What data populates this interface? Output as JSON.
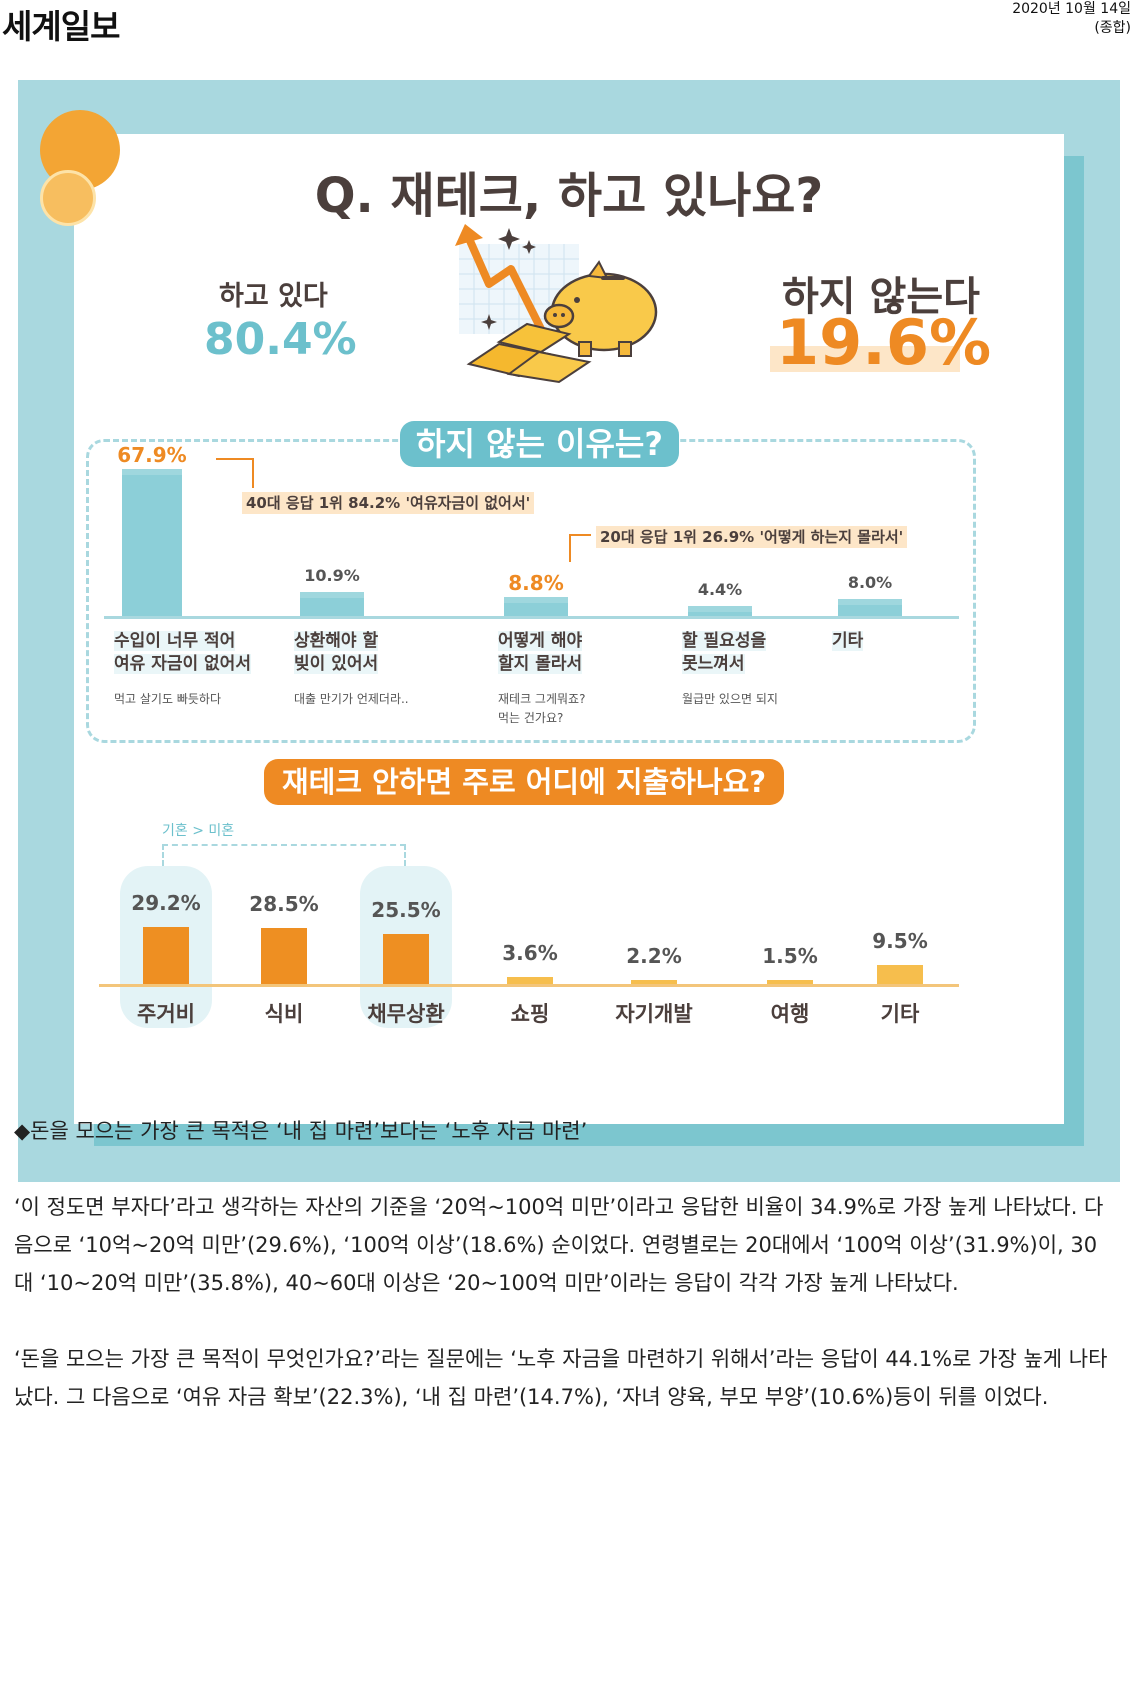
{
  "masthead": {
    "logo": "세계일보",
    "date": "2020년 10월 14일",
    "section": "(종합)"
  },
  "infographic": {
    "question": "Q. 재테크, 하고 있나요?",
    "yes": {
      "label": "하고 있다",
      "pct": "80.4%"
    },
    "no": {
      "label": "하지 않는다",
      "pct": "19.6%"
    },
    "reasons": {
      "title": "하지 않는 이유는?",
      "callout_40s": "40대 응답 1위 84.2% '여유자금이 없어서'",
      "callout_20s": "20대 응답 1위 26.9% '어떻게 하는지 몰라서'",
      "items": [
        {
          "value": 67.9,
          "value_label": "67.9%",
          "line1": "수입이 너무 적어",
          "line2": "여유 자금이 없어서",
          "sub1": "먹고 살기도 빠듯하다",
          "sub2": ""
        },
        {
          "value": 10.9,
          "value_label": "10.9%",
          "line1": "상환해야 할",
          "line2": "빚이 있어서",
          "sub1": "대출 만기가 언제더라..",
          "sub2": ""
        },
        {
          "value": 8.8,
          "value_label": "8.8%",
          "line1": "어떻게 해야",
          "line2": "할지 몰라서",
          "sub1": "재테크 그게뭐죠?",
          "sub2": "먹는 건가요?"
        },
        {
          "value": 4.4,
          "value_label": "4.4%",
          "line1": "할 필요성을",
          "line2": "못느껴서",
          "sub1": "월급만 있으면 되지",
          "sub2": ""
        },
        {
          "value": 8.0,
          "value_label": "8.0%",
          "line1": "기타",
          "line2": "",
          "sub1": "",
          "sub2": ""
        }
      ]
    },
    "spending": {
      "title": "재테크 안하면 주로 어디에 지출하나요?",
      "marital_note": "기혼 > 미혼",
      "items": [
        {
          "value": 29.2,
          "value_label": "29.2%",
          "label": "주거비"
        },
        {
          "value": 28.5,
          "value_label": "28.5%",
          "label": "식비"
        },
        {
          "value": 25.5,
          "value_label": "25.5%",
          "label": "채무상환"
        },
        {
          "value": 3.6,
          "value_label": "3.6%",
          "label": "쇼핑"
        },
        {
          "value": 2.2,
          "value_label": "2.2%",
          "label": "자기개발"
        },
        {
          "value": 1.5,
          "value_label": "1.5%",
          "label": "여행"
        },
        {
          "value": 9.5,
          "value_label": "9.5%",
          "label": "기타"
        }
      ]
    }
  },
  "article": {
    "subheading": "◆돈을 모으는 가장 큰 목적은 ‘내 집 마련’보다는 ‘노후 자금 마련’",
    "para1": "‘이 정도면 부자다’라고 생각하는 자산의 기준을 ‘20억~100억 미만’이라고 응답한 비율이 34.9%로 가장 높게 나타났다. 다음으로 ‘10억~20억 미만’(29.6%), ‘100억 이상’(18.6%) 순이었다. 연령별로는 20대에서 ‘100억 이상’(31.9%)이, 30대 ‘10~20억 미만’(35.8%), 40~60대 이상은 ‘20~100억 미만’이라는 응답이 각각 가장 높게 나타났다.",
    "para2": "‘돈을 모으는 가장 큰 목적이 무엇인가요?’라는 질문에는 ‘노후 자금을 마련하기 위해서’라는 응답이 44.1%로 가장 높게 나타났다. 그 다음으로 ‘여유 자금 확보’(22.3%), ‘내 집 마련’(14.7%), ‘자녀 양육, 부모 부양’(10.6%)등이 뒤를 이었다."
  }
}
